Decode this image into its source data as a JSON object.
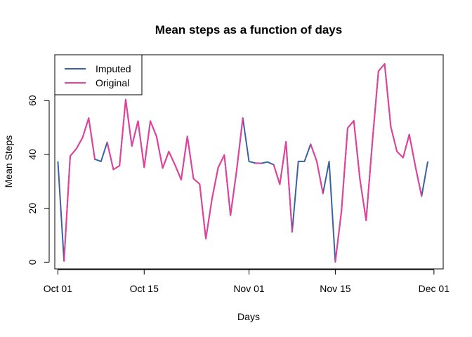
{
  "chart_data": {
    "type": "line",
    "title": "Mean steps as a function of days",
    "xlabel": "Days",
    "ylabel": "Mean Steps",
    "x_start_date": "2012-10-01",
    "x_tick_labels": [
      "Oct 01",
      "Oct 15",
      "Nov 01",
      "Nov 15",
      "Dec 01"
    ],
    "x_tick_days": [
      0,
      14,
      31,
      45,
      61
    ],
    "y_ticks": [
      0,
      20,
      40,
      60
    ],
    "xlim": [
      -0.5,
      62.5
    ],
    "ylim": [
      -2.5,
      77
    ],
    "grid": false,
    "legend_position": "top-left",
    "series": [
      {
        "name": "Imputed",
        "color": "#3b62a0",
        "values": [
          37.4,
          0.4,
          39.4,
          42.1,
          46.2,
          53.5,
          38.2,
          37.4,
          44.5,
          34.4,
          35.8,
          60.4,
          43.1,
          52.4,
          35.2,
          52.4,
          46.7,
          34.9,
          41.1,
          36.1,
          30.6,
          46.7,
          31.0,
          29.0,
          8.7,
          23.5,
          35.1,
          39.8,
          17.4,
          34.1,
          53.5,
          37.4,
          36.8,
          36.7,
          37.2,
          36.2,
          28.9,
          44.7,
          11.2,
          37.4,
          37.4,
          43.8,
          37.4,
          25.5,
          37.4,
          0.1,
          19.0,
          49.8,
          52.5,
          30.7,
          15.5,
          44.4,
          70.9,
          73.6,
          50.3,
          41.1,
          38.8,
          47.4,
          35.4,
          24.5,
          37.4
        ]
      },
      {
        "name": "Original",
        "color": "#e8409a",
        "values": [
          null,
          0.4,
          39.4,
          42.1,
          46.2,
          53.5,
          38.2,
          null,
          44.5,
          34.4,
          35.8,
          60.4,
          43.1,
          52.4,
          35.2,
          52.4,
          46.7,
          34.9,
          41.1,
          36.1,
          30.6,
          46.7,
          31.0,
          29.0,
          8.7,
          23.5,
          35.1,
          39.8,
          17.4,
          34.1,
          53.5,
          null,
          36.8,
          36.7,
          null,
          36.2,
          28.9,
          44.7,
          11.2,
          null,
          null,
          43.8,
          37.4,
          25.5,
          null,
          0.1,
          19.0,
          49.8,
          52.5,
          30.7,
          15.5,
          44.4,
          70.9,
          73.6,
          50.3,
          41.1,
          38.8,
          47.4,
          35.4,
          24.5,
          null
        ]
      }
    ]
  },
  "colors": {
    "imputed": "#3b62a0",
    "original": "#e8409a"
  }
}
